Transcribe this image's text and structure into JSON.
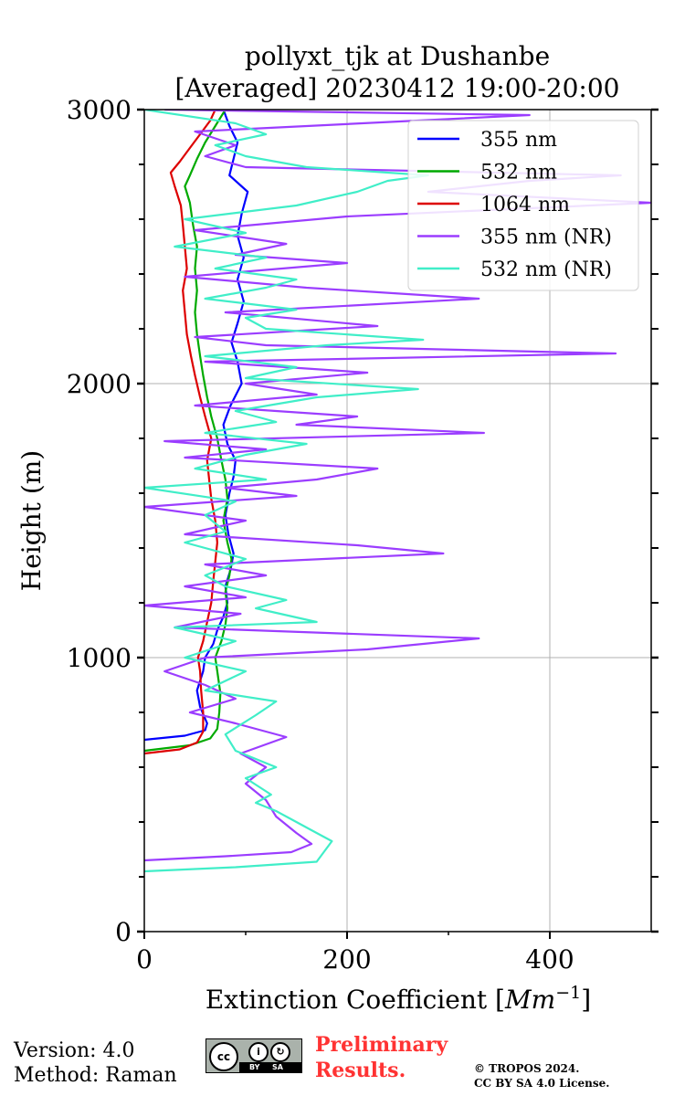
{
  "chart_data": {
    "type": "line",
    "title_line1": "pollyxt_tjk at Dushanbe",
    "title_line2": "[Averaged] 20230412 19:00-20:00",
    "xlabel_main": "Extinction Coefficient [",
    "xlabel_unit": "Mm",
    "xlabel_exp": "−1",
    "xlabel_close": "]",
    "ylabel": "Height (m)",
    "xlim": [
      0,
      500
    ],
    "ylim": [
      0,
      3000
    ],
    "x_ticks": [
      0,
      200,
      400
    ],
    "x_tick_labels": [
      "0",
      "200",
      "400"
    ],
    "y_ticks": [
      0,
      1000,
      2000,
      3000
    ],
    "y_tick_labels": [
      "0",
      "1000",
      "2000",
      "3000"
    ],
    "grid": true,
    "legend_position": "top-right",
    "series": [
      {
        "name": "355 nm",
        "color": "#0000ff",
        "points": [
          [
            0,
            700
          ],
          [
            40,
            715
          ],
          [
            60,
            735
          ],
          [
            62,
            760
          ],
          [
            55,
            820
          ],
          [
            52,
            880
          ],
          [
            58,
            950
          ],
          [
            60,
            1000
          ],
          [
            68,
            1050
          ],
          [
            72,
            1100
          ],
          [
            78,
            1150
          ],
          [
            82,
            1200
          ],
          [
            80,
            1260
          ],
          [
            85,
            1320
          ],
          [
            88,
            1380
          ],
          [
            83,
            1450
          ],
          [
            80,
            1520
          ],
          [
            84,
            1600
          ],
          [
            88,
            1660
          ],
          [
            90,
            1720
          ],
          [
            82,
            1780
          ],
          [
            78,
            1850
          ],
          [
            85,
            1920
          ],
          [
            96,
            2000
          ],
          [
            92,
            2080
          ],
          [
            86,
            2150
          ],
          [
            92,
            2220
          ],
          [
            98,
            2300
          ],
          [
            92,
            2380
          ],
          [
            98,
            2460
          ],
          [
            92,
            2540
          ],
          [
            96,
            2620
          ],
          [
            102,
            2700
          ],
          [
            84,
            2760
          ],
          [
            88,
            2820
          ],
          [
            92,
            2880
          ],
          [
            84,
            2940
          ],
          [
            78,
            3000
          ]
        ]
      },
      {
        "name": "532 nm",
        "color": "#00aa00",
        "points": [
          [
            0,
            660
          ],
          [
            45,
            680
          ],
          [
            65,
            705
          ],
          [
            72,
            740
          ],
          [
            74,
            800
          ],
          [
            75,
            870
          ],
          [
            72,
            950
          ],
          [
            70,
            1000
          ],
          [
            76,
            1060
          ],
          [
            80,
            1120
          ],
          [
            82,
            1180
          ],
          [
            80,
            1240
          ],
          [
            84,
            1300
          ],
          [
            86,
            1360
          ],
          [
            82,
            1420
          ],
          [
            78,
            1500
          ],
          [
            82,
            1580
          ],
          [
            80,
            1650
          ],
          [
            76,
            1720
          ],
          [
            72,
            1800
          ],
          [
            66,
            1880
          ],
          [
            62,
            1950
          ],
          [
            58,
            2030
          ],
          [
            55,
            2100
          ],
          [
            52,
            2180
          ],
          [
            50,
            2260
          ],
          [
            52,
            2340
          ],
          [
            50,
            2420
          ],
          [
            52,
            2500
          ],
          [
            48,
            2580
          ],
          [
            45,
            2660
          ],
          [
            40,
            2720
          ],
          [
            45,
            2760
          ],
          [
            52,
            2820
          ],
          [
            60,
            2880
          ],
          [
            70,
            2940
          ],
          [
            80,
            3000
          ]
        ]
      },
      {
        "name": "1064 nm",
        "color": "#dd0000",
        "points": [
          [
            0,
            650
          ],
          [
            35,
            665
          ],
          [
            52,
            690
          ],
          [
            58,
            730
          ],
          [
            58,
            800
          ],
          [
            56,
            880
          ],
          [
            55,
            950
          ],
          [
            53,
            1000
          ],
          [
            58,
            1060
          ],
          [
            62,
            1130
          ],
          [
            66,
            1200
          ],
          [
            68,
            1280
          ],
          [
            70,
            1350
          ],
          [
            72,
            1420
          ],
          [
            70,
            1500
          ],
          [
            66,
            1580
          ],
          [
            64,
            1650
          ],
          [
            62,
            1720
          ],
          [
            66,
            1800
          ],
          [
            60,
            1880
          ],
          [
            55,
            1950
          ],
          [
            50,
            2030
          ],
          [
            46,
            2100
          ],
          [
            42,
            2180
          ],
          [
            40,
            2260
          ],
          [
            38,
            2340
          ],
          [
            42,
            2420
          ],
          [
            40,
            2500
          ],
          [
            38,
            2580
          ],
          [
            36,
            2650
          ],
          [
            30,
            2720
          ],
          [
            26,
            2770
          ],
          [
            35,
            2810
          ],
          [
            45,
            2860
          ],
          [
            55,
            2910
          ],
          [
            65,
            2960
          ],
          [
            70,
            3000
          ]
        ]
      },
      {
        "name": "355 nm (NR)",
        "color": "#9b3dff",
        "points": [
          [
            0,
            260
          ],
          [
            80,
            275
          ],
          [
            145,
            290
          ],
          [
            165,
            320
          ],
          [
            150,
            360
          ],
          [
            130,
            420
          ],
          [
            120,
            480
          ],
          [
            100,
            540
          ],
          [
            120,
            600
          ],
          [
            95,
            650
          ],
          [
            140,
            710
          ],
          [
            90,
            760
          ],
          [
            45,
            800
          ],
          [
            90,
            850
          ],
          [
            60,
            900
          ],
          [
            20,
            950
          ],
          [
            60,
            1000
          ],
          [
            220,
            1030
          ],
          [
            330,
            1070
          ],
          [
            180,
            1090
          ],
          [
            30,
            1110
          ],
          [
            95,
            1160
          ],
          [
            0,
            1190
          ],
          [
            100,
            1220
          ],
          [
            40,
            1260
          ],
          [
            120,
            1300
          ],
          [
            60,
            1340
          ],
          [
            295,
            1380
          ],
          [
            210,
            1410
          ],
          [
            40,
            1450
          ],
          [
            100,
            1500
          ],
          [
            0,
            1550
          ],
          [
            150,
            1590
          ],
          [
            80,
            1620
          ],
          [
            170,
            1650
          ],
          [
            230,
            1690
          ],
          [
            40,
            1730
          ],
          [
            120,
            1760
          ],
          [
            20,
            1790
          ],
          [
            335,
            1820
          ],
          [
            150,
            1850
          ],
          [
            210,
            1880
          ],
          [
            50,
            1920
          ],
          [
            170,
            1960
          ],
          [
            100,
            2000
          ],
          [
            220,
            2040
          ],
          [
            60,
            2080
          ],
          [
            465,
            2110
          ],
          [
            120,
            2140
          ],
          [
            50,
            2170
          ],
          [
            230,
            2210
          ],
          [
            80,
            2260
          ],
          [
            330,
            2310
          ],
          [
            160,
            2350
          ],
          [
            40,
            2390
          ],
          [
            200,
            2440
          ],
          [
            90,
            2470
          ],
          [
            140,
            2510
          ],
          [
            50,
            2560
          ],
          [
            200,
            2610
          ],
          [
            500,
            2660
          ],
          [
            280,
            2700
          ],
          [
            380,
            2740
          ],
          [
            470,
            2760
          ],
          [
            100,
            2790
          ],
          [
            60,
            2830
          ],
          [
            90,
            2870
          ],
          [
            50,
            2920
          ],
          [
            380,
            2980
          ],
          [
            20,
            3000
          ]
        ]
      },
      {
        "name": "532 nm (NR)",
        "color": "#40eec8",
        "points": [
          [
            0,
            220
          ],
          [
            90,
            235
          ],
          [
            170,
            255
          ],
          [
            185,
            330
          ],
          [
            165,
            370
          ],
          [
            150,
            400
          ],
          [
            130,
            440
          ],
          [
            110,
            470
          ],
          [
            125,
            500
          ],
          [
            100,
            560
          ],
          [
            130,
            600
          ],
          [
            90,
            660
          ],
          [
            80,
            720
          ],
          [
            110,
            790
          ],
          [
            130,
            840
          ],
          [
            60,
            880
          ],
          [
            100,
            950
          ],
          [
            40,
            1000
          ],
          [
            90,
            1060
          ],
          [
            30,
            1110
          ],
          [
            170,
            1130
          ],
          [
            110,
            1180
          ],
          [
            140,
            1210
          ],
          [
            80,
            1260
          ],
          [
            60,
            1300
          ],
          [
            100,
            1360
          ],
          [
            40,
            1420
          ],
          [
            80,
            1460
          ],
          [
            60,
            1520
          ],
          [
            90,
            1570
          ],
          [
            0,
            1620
          ],
          [
            120,
            1650
          ],
          [
            50,
            1690
          ],
          [
            100,
            1740
          ],
          [
            160,
            1780
          ],
          [
            60,
            1820
          ],
          [
            130,
            1860
          ],
          [
            90,
            1900
          ],
          [
            170,
            1950
          ],
          [
            270,
            1980
          ],
          [
            100,
            2020
          ],
          [
            150,
            2060
          ],
          [
            60,
            2100
          ],
          [
            180,
            2140
          ],
          [
            275,
            2160
          ],
          [
            120,
            2200
          ],
          [
            100,
            2240
          ],
          [
            150,
            2270
          ],
          [
            60,
            2310
          ],
          [
            120,
            2350
          ],
          [
            150,
            2380
          ],
          [
            70,
            2420
          ],
          [
            120,
            2460
          ],
          [
            30,
            2500
          ],
          [
            100,
            2550
          ],
          [
            40,
            2600
          ],
          [
            150,
            2650
          ],
          [
            210,
            2700
          ],
          [
            240,
            2740
          ],
          [
            280,
            2760
          ],
          [
            160,
            2790
          ],
          [
            100,
            2830
          ],
          [
            70,
            2870
          ],
          [
            120,
            2910
          ],
          [
            90,
            2950
          ],
          [
            0,
            3000
          ]
        ]
      }
    ]
  },
  "footer": {
    "version": "Version: 4.0",
    "method": "Method: Raman",
    "prelim_line1": "Preliminary",
    "prelim_line2": "Results.",
    "copyright_line1": "© TROPOS 2024.",
    "copyright_line2": "CC BY SA 4.0 License.",
    "cc_logo": {
      "cc": "cc",
      "by_icon": "i",
      "sa_icon": "↻",
      "by": "BY",
      "sa": "SA"
    }
  }
}
